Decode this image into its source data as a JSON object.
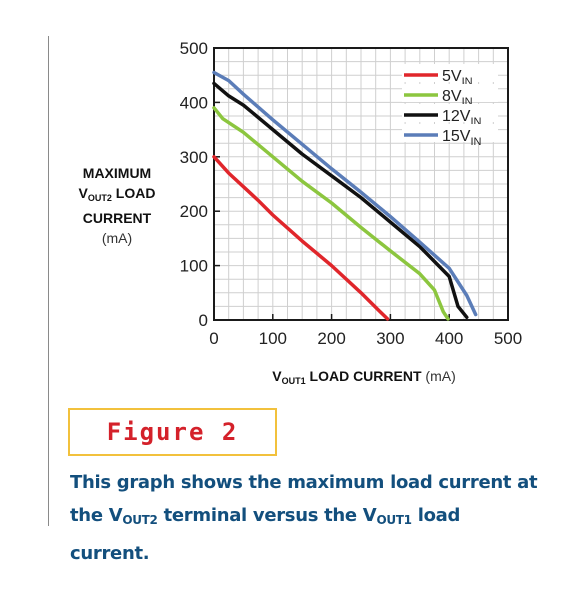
{
  "figure": {
    "title": "Figure 2",
    "caption": {
      "p1": "This graph shows the maximum load current at the V",
      "s1": "OUT2",
      "p2": " terminal versus the V",
      "s2": "OUT1",
      "p3": " load current."
    }
  },
  "colors": {
    "axis": "#1a1a1a",
    "grid": "#cfcfcf",
    "caption": "#134f7d",
    "figure_title": "#d4212a",
    "figure_border": "#f2c13c"
  },
  "chart_data": {
    "type": "line",
    "xlabel": {
      "pre": "V",
      "sub": "OUT1",
      "post": " LOAD CURRENT ",
      "unit": "(mA)"
    },
    "ylabel": {
      "line1": "MAXIMUM",
      "line2pre": "V",
      "line2sub": "OUT2",
      "line2post": " LOAD",
      "line3": "CURRENT",
      "unit": "(mA)"
    },
    "xlim": [
      0,
      500
    ],
    "ylim": [
      0,
      500
    ],
    "xticks": [
      0,
      100,
      200,
      300,
      400,
      500
    ],
    "yticks": [
      0,
      100,
      200,
      300,
      400,
      500
    ],
    "grid": true,
    "legend_position": "top-right",
    "series": [
      {
        "name": "5V",
        "sub": "IN",
        "color": "#e0262b",
        "points": [
          [
            0,
            300
          ],
          [
            25,
            270
          ],
          [
            50,
            245
          ],
          [
            75,
            220
          ],
          [
            100,
            193
          ],
          [
            150,
            145
          ],
          [
            200,
            100
          ],
          [
            250,
            50
          ],
          [
            280,
            18
          ],
          [
            295,
            2
          ]
        ]
      },
      {
        "name": "8V",
        "sub": "IN",
        "color": "#8cc63f",
        "points": [
          [
            0,
            390
          ],
          [
            15,
            370
          ],
          [
            50,
            345
          ],
          [
            100,
            300
          ],
          [
            150,
            255
          ],
          [
            200,
            215
          ],
          [
            250,
            170
          ],
          [
            300,
            127
          ],
          [
            350,
            85
          ],
          [
            375,
            55
          ],
          [
            390,
            15
          ],
          [
            398,
            2
          ]
        ]
      },
      {
        "name": "12V",
        "sub": "IN",
        "color": "#111111",
        "points": [
          [
            0,
            435
          ],
          [
            25,
            412
          ],
          [
            50,
            395
          ],
          [
            100,
            350
          ],
          [
            150,
            305
          ],
          [
            200,
            265
          ],
          [
            250,
            225
          ],
          [
            300,
            180
          ],
          [
            350,
            135
          ],
          [
            400,
            80
          ],
          [
            415,
            25
          ],
          [
            430,
            5
          ]
        ]
      },
      {
        "name": "15V",
        "sub": "IN",
        "color": "#5b7db8",
        "points": [
          [
            0,
            455
          ],
          [
            25,
            440
          ],
          [
            50,
            415
          ],
          [
            100,
            368
          ],
          [
            150,
            323
          ],
          [
            200,
            278
          ],
          [
            250,
            235
          ],
          [
            300,
            190
          ],
          [
            350,
            143
          ],
          [
            400,
            95
          ],
          [
            430,
            45
          ],
          [
            445,
            10
          ]
        ]
      }
    ]
  }
}
